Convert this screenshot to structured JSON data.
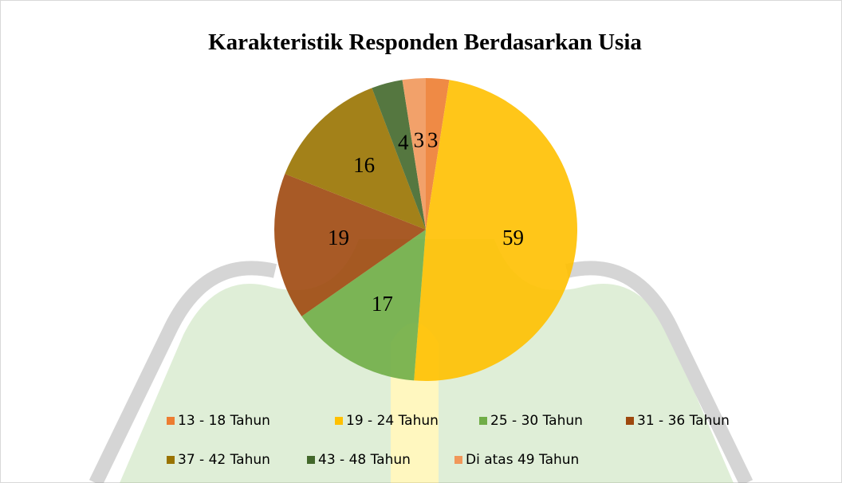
{
  "chart_data": {
    "type": "pie",
    "title": "Karakteristik Responden Berdasarkan Usia",
    "categories": [
      "13 - 18 Tahun",
      "19 - 24 Tahun",
      "25 - 30 Tahun",
      "31 - 36 Tahun",
      "37 - 42 Tahun",
      "43 - 48 Tahun",
      "Di atas 49 Tahun"
    ],
    "values": [
      3,
      59,
      17,
      19,
      16,
      4,
      3
    ],
    "colors": [
      "#ED7D31",
      "#FFC000",
      "#70AD47",
      "#9E480E",
      "#997300",
      "#43682B",
      "#F1975A"
    ],
    "legend": "bottom"
  }
}
